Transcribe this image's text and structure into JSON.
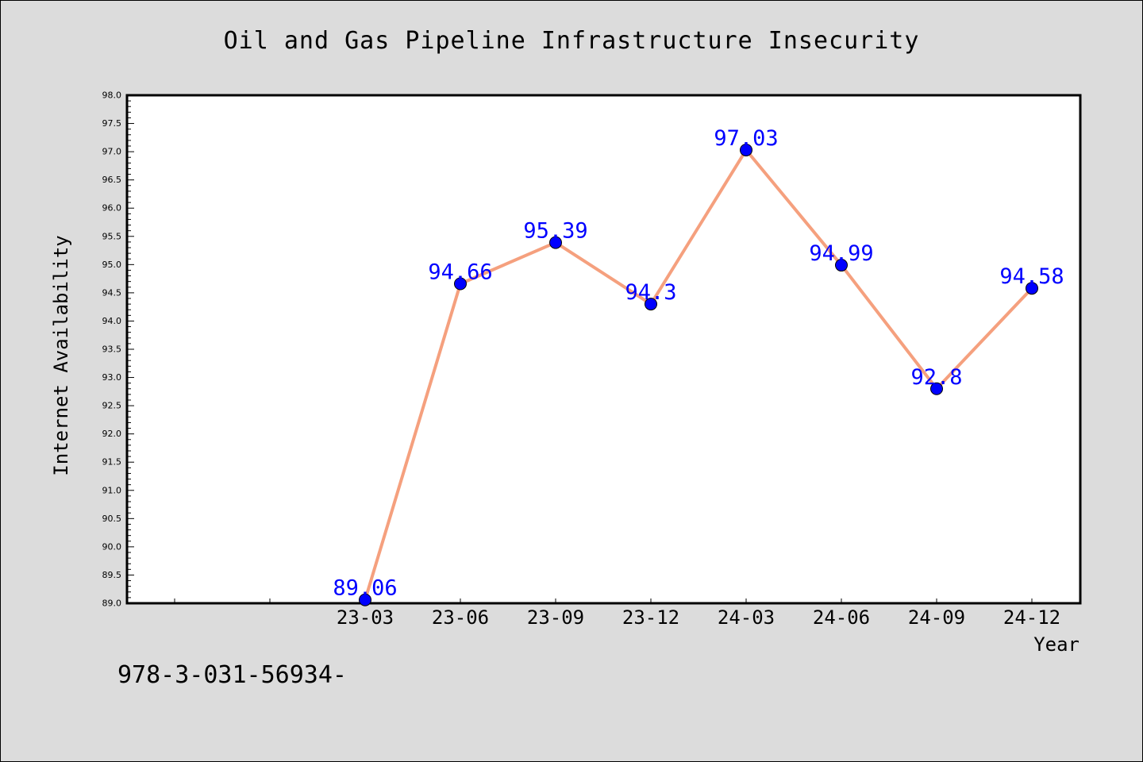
{
  "chart_data": {
    "type": "line",
    "title": "Oil and Gas Pipeline Infrastructure Insecurity",
    "xlabel": "Year",
    "ylabel": "Internet Availability",
    "categories": [
      "23-03",
      "23-06",
      "23-09",
      "23-12",
      "24-03",
      "24-06",
      "24-09",
      "24-12"
    ],
    "values": [
      89.06,
      94.66,
      95.39,
      94.3,
      97.03,
      94.99,
      92.8,
      94.58
    ],
    "data_labels": [
      "89.06",
      "94.66",
      "95.39",
      "94.3",
      "97.03",
      "94.99",
      "92.8",
      "94.58"
    ],
    "ylim": [
      89.0,
      98.0
    ],
    "yticks": [
      "89.0",
      "89.5",
      "90.0",
      "90.5",
      "91.0",
      "91.5",
      "92.0",
      "92.5",
      "93.0",
      "93.5",
      "94.0",
      "94.5",
      "95.0",
      "95.5",
      "96.0",
      "96.5",
      "97.0",
      "97.5",
      "98.0"
    ],
    "grid": false,
    "legend": "none",
    "colors": {
      "line": "#f5a07e",
      "marker": "#0000ff",
      "data_label": "#0000ff",
      "plot_background": "#ffffff",
      "figure_background": "#dcdcdc"
    }
  },
  "footer": {
    "text": "978-3-031-56934-"
  }
}
